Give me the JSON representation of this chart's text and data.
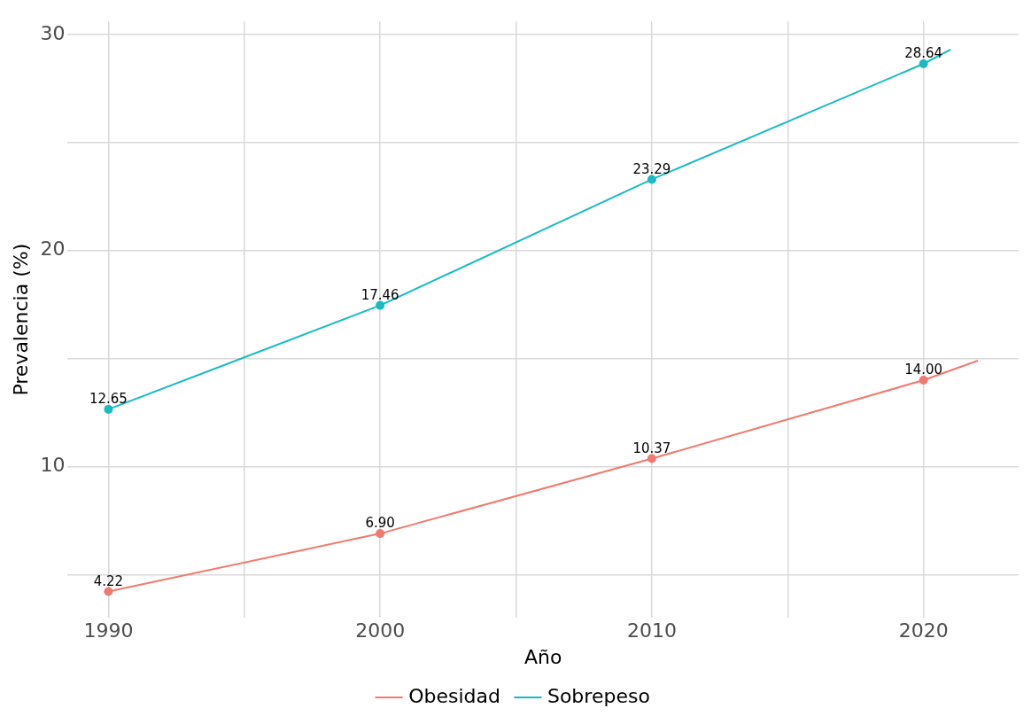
{
  "chart_data": {
    "type": "line",
    "xlabel": "Año",
    "ylabel": "Prevalencia (%)",
    "series": [
      {
        "name": "Obesidad",
        "color": "#f07a70",
        "x": [
          1990,
          2000,
          2010,
          2020,
          2022
        ],
        "values": [
          4.22,
          6.9,
          10.37,
          14.0,
          14.9
        ],
        "value_labels": [
          "4.22",
          "6.90",
          "10.37",
          "14.00",
          null
        ]
      },
      {
        "name": "Sobrepeso",
        "color": "#18bcc0",
        "x": [
          1990,
          2000,
          2010,
          2020,
          2021
        ],
        "values": [
          12.65,
          17.46,
          23.29,
          28.64,
          29.3
        ],
        "value_labels": [
          "12.65",
          "17.46",
          "23.29",
          "28.64",
          null
        ]
      }
    ],
    "xlim": [
      1988.5,
      2023.5
    ],
    "xticks": [
      1990,
      {
        "value": 1995,
        "label": null
      },
      2000,
      {
        "value": 2005,
        "label": null
      },
      2010,
      {
        "value": 2015,
        "label": null
      },
      2020
    ],
    "ylim": [
      3,
      30.6
    ],
    "yticks": [
      {
        "value": 5,
        "label": null
      },
      10,
      {
        "value": 15,
        "label": null
      },
      20,
      {
        "value": 25,
        "label": null
      },
      30
    ],
    "grid": true,
    "legend": "bottom",
    "marker": "circle",
    "line_style": "solid"
  }
}
